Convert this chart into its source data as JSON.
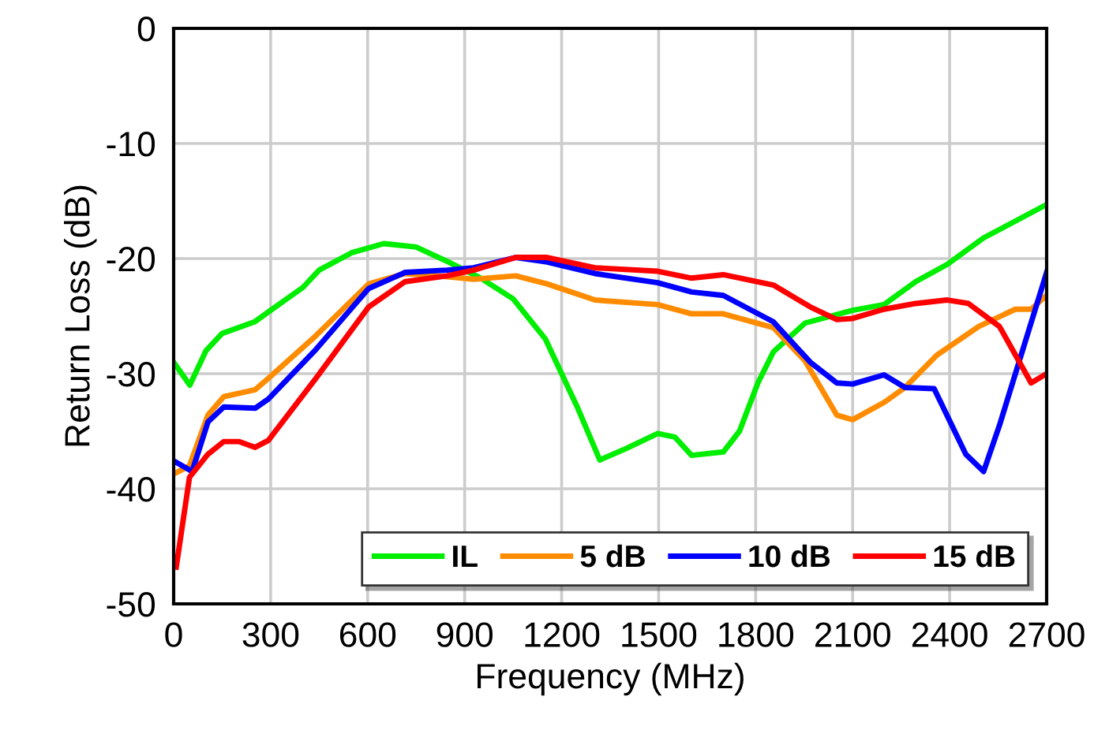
{
  "chart_data": {
    "type": "line",
    "xlabel": "Frequency (MHz)",
    "ylabel": "Return Loss (dB)",
    "xlim": [
      0,
      2700
    ],
    "xticks": [
      0,
      300,
      600,
      900,
      1200,
      1500,
      1800,
      2100,
      2400,
      2700
    ],
    "ylim": [
      -50,
      0
    ],
    "yticks": [
      -50,
      -40,
      -30,
      -20,
      -10,
      0
    ],
    "grid": true,
    "legend": "bottom right",
    "marker": "none",
    "line_style": "solid",
    "series": [
      {
        "name": "IL",
        "color": "#00ee00",
        "x": [
          0,
          50,
          100,
          150,
          250,
          300,
          400,
          450,
          550,
          650,
          750,
          850,
          950,
          1050,
          1150,
          1250,
          1318,
          1400,
          1497,
          1550,
          1602,
          1700,
          1750,
          1807,
          1855,
          1953,
          2100,
          2197,
          2295,
          2393,
          2505,
          2586,
          2700
        ],
        "values": [
          -29,
          -31,
          -28,
          -26.5,
          -25.5,
          -24.5,
          -22.5,
          -21,
          -19.5,
          -18.7,
          -19,
          -20.3,
          -21.7,
          -23.5,
          -27,
          -33,
          -37.5,
          -36.5,
          -35.2,
          -35.5,
          -37.1,
          -36.8,
          -35,
          -30.8,
          -28.1,
          -25.6,
          -24.5,
          -24,
          -22,
          -20.5,
          -18.2,
          -17,
          -15.3
        ]
      },
      {
        "name": "5 dB",
        "color": "#ff8c00",
        "x": [
          8,
          49,
          106,
          155,
          252,
          293,
          440,
          603,
          716,
          815,
          928,
          1058,
          1155,
          1303,
          1497,
          1602,
          1700,
          1855,
          1953,
          2051,
          2100,
          2197,
          2262,
          2360,
          2490,
          2603,
          2652,
          2700
        ],
        "values": [
          -38.6,
          -38,
          -33.6,
          -32,
          -31.4,
          -30.4,
          -26.7,
          -22.2,
          -21.3,
          -21.5,
          -21.8,
          -21.5,
          -22.2,
          -23.6,
          -24,
          -24.8,
          -24.8,
          -26,
          -28.9,
          -33.6,
          -34,
          -32.5,
          -31.2,
          -28.4,
          -25.9,
          -24.4,
          -24.4,
          -23.2
        ]
      },
      {
        "name": "10 dB",
        "color": "#0000ff",
        "x": [
          8,
          57,
          106,
          155,
          252,
          293,
          440,
          603,
          716,
          846,
          928,
          1058,
          1155,
          1303,
          1497,
          1602,
          1700,
          1855,
          1969,
          2051,
          2100,
          2197,
          2262,
          2352,
          2450,
          2505,
          2554,
          2700
        ],
        "values": [
          -37.7,
          -38.5,
          -34.2,
          -32.9,
          -33,
          -32.2,
          -27.9,
          -22.6,
          -21.2,
          -21,
          -20.8,
          -19.9,
          -20.3,
          -21.3,
          -22.1,
          -22.9,
          -23.2,
          -25.5,
          -29,
          -30.8,
          -30.9,
          -30.1,
          -31.2,
          -31.3,
          -37,
          -38.5,
          -34.5,
          -21.2
        ]
      },
      {
        "name": "15 dB",
        "color": "#ff0000",
        "x": [
          8,
          49,
          106,
          155,
          203,
          252,
          293,
          440,
          603,
          716,
          846,
          928,
          1058,
          1155,
          1303,
          1497,
          1602,
          1700,
          1855,
          1969,
          2051,
          2100,
          2197,
          2295,
          2393,
          2458,
          2554,
          2652,
          2700
        ],
        "values": [
          -46.8,
          -39,
          -37,
          -35.9,
          -35.9,
          -36.4,
          -35.8,
          -30.4,
          -24.2,
          -22,
          -21.5,
          -21,
          -19.9,
          -19.9,
          -20.8,
          -21.1,
          -21.7,
          -21.4,
          -22.3,
          -24.2,
          -25.3,
          -25.2,
          -24.4,
          -23.9,
          -23.6,
          -23.9,
          -25.9,
          -30.8,
          -30
        ]
      }
    ]
  }
}
